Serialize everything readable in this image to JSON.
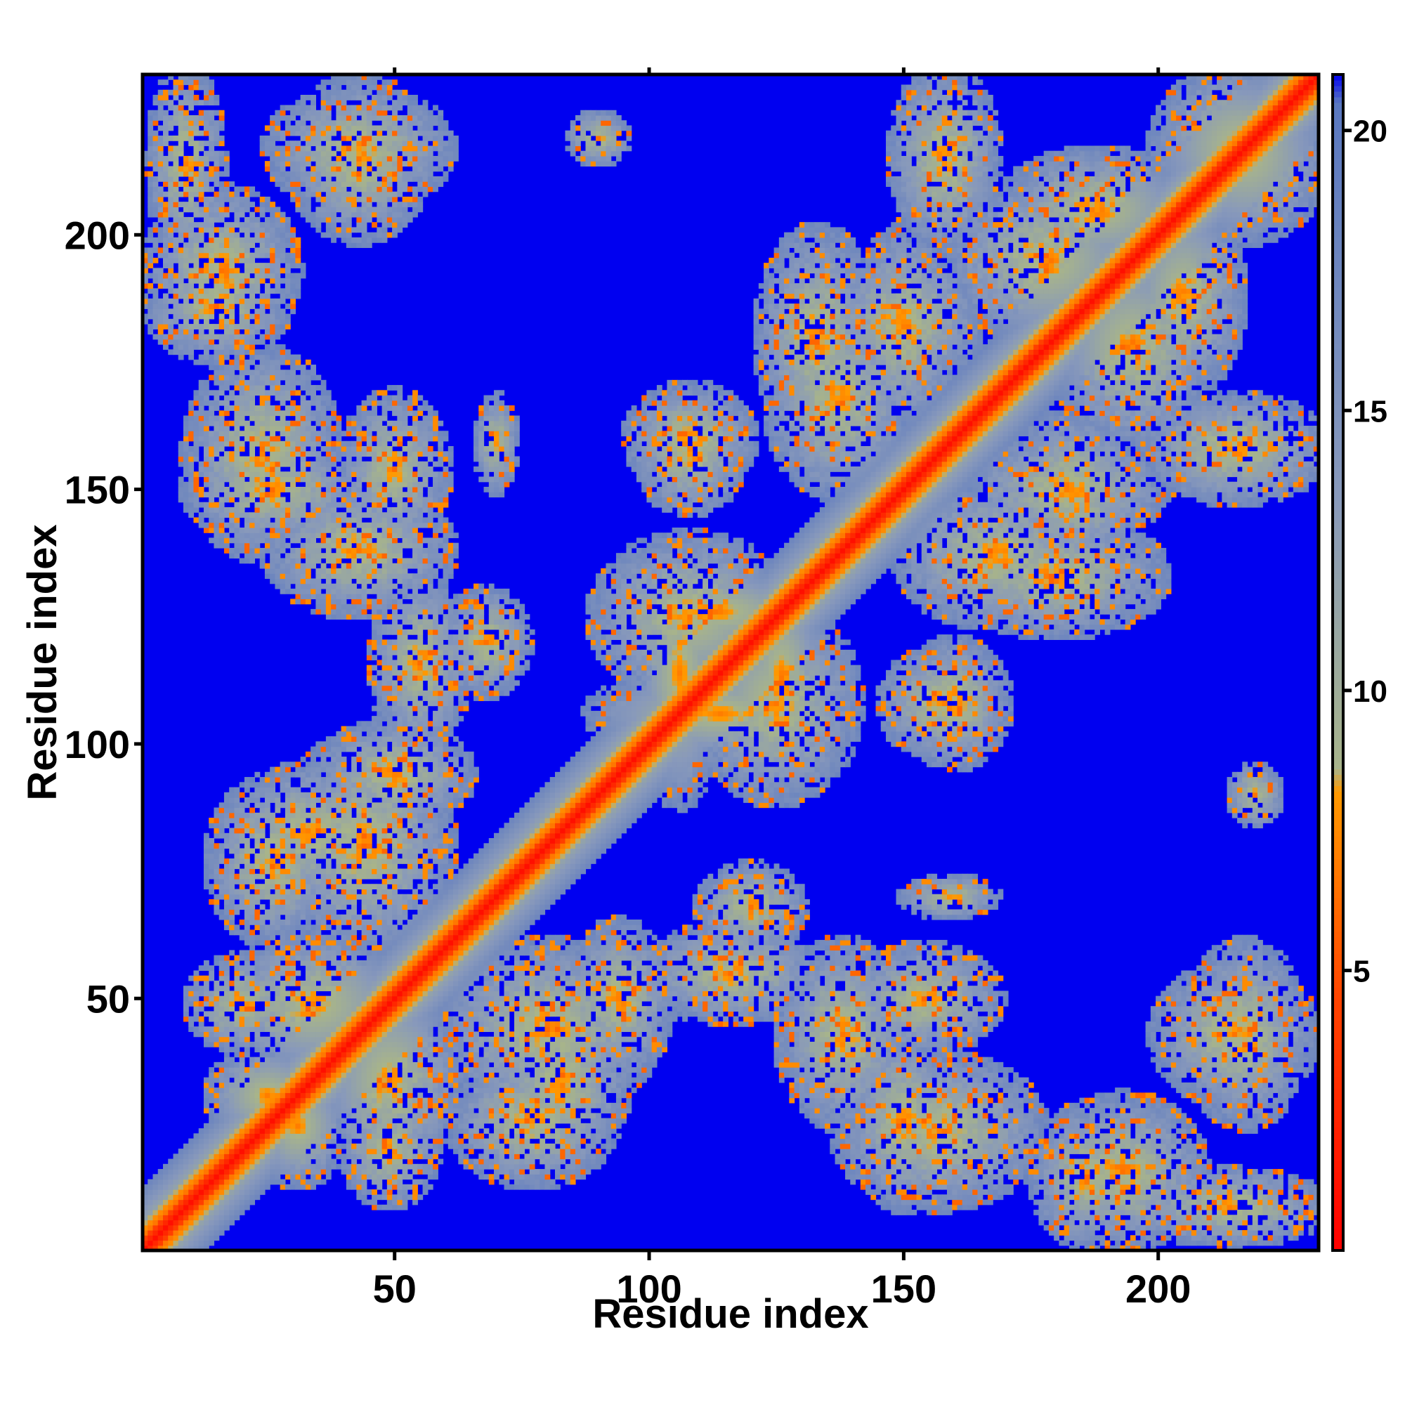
{
  "chart_data": {
    "type": "heatmap",
    "title": "",
    "xlabel": "Residue index",
    "ylabel": "Residue index",
    "n_residues": 231,
    "xlim": [
      0.5,
      231.5
    ],
    "ylim": [
      0.5,
      231.5
    ],
    "x_ticks": [
      50,
      100,
      150,
      200
    ],
    "y_ticks": [
      50,
      100,
      150,
      200
    ],
    "x_tick_labels": [
      "50",
      "100",
      "150",
      "200"
    ],
    "y_tick_labels": [
      "50",
      "100",
      "150",
      "200"
    ],
    "value_label": "",
    "value_range": [
      0,
      21
    ],
    "colorbar_ticks": [
      5,
      10,
      15,
      20
    ],
    "colorbar_tick_labels": [
      "5",
      "10",
      "15",
      "20"
    ],
    "legend_position": "right",
    "grid": false,
    "colors": {
      "near": "#ff0000",
      "mid": "#ff9900",
      "contact": "#a8b48a",
      "far_low": "#8899bb",
      "far_high": "#5a78c0",
      "background": "#0000f0"
    },
    "color_stops": [
      {
        "value": 0,
        "color": "#ff0000"
      },
      {
        "value": 4.5,
        "color": "#ff4400"
      },
      {
        "value": 8.2,
        "color": "#ff9900"
      },
      {
        "value": 8.6,
        "color": "#a8b48a"
      },
      {
        "value": 13.5,
        "color": "#8899bb"
      },
      {
        "value": 20.5,
        "color": "#5a78c0"
      },
      {
        "value": 21,
        "color": "#0000f0"
      }
    ],
    "contact_blocks": [
      {
        "x": [
          22,
          40
        ],
        "y": [
          14,
          36
        ]
      },
      {
        "x": [
          40,
          58
        ],
        "y": [
          10,
          30
        ]
      },
      {
        "x": [
          70,
          95
        ],
        "y": [
          18,
          50
        ]
      },
      {
        "x": [
          60,
          100
        ],
        "y": [
          28,
          60
        ]
      },
      {
        "x": [
          16,
          52
        ],
        "y": [
          36,
          62
        ]
      },
      {
        "x": [
          14,
          38
        ],
        "y": [
          62,
          92
        ]
      },
      {
        "x": [
          36,
          64
        ],
        "y": [
          84,
          104
        ]
      },
      {
        "x": [
          46,
          64
        ],
        "y": [
          100,
          132
        ]
      },
      {
        "x": [
          10,
          42
        ],
        "y": [
          140,
          160
        ]
      },
      {
        "x": [
          40,
          60
        ],
        "y": [
          140,
          168
        ]
      },
      {
        "x": [
          2,
          28
        ],
        "y": [
          176,
          196
        ]
      },
      {
        "x": [
          2,
          16
        ],
        "y": [
          196,
          232
        ]
      },
      {
        "x": [
          30,
          56
        ],
        "y": [
          200,
          230
        ]
      },
      {
        "x": [
          98,
          114
        ],
        "y": [
          90,
          138
        ]
      },
      {
        "x": [
          110,
          140
        ],
        "y": [
          90,
          126
        ]
      },
      {
        "x": [
          96,
          132
        ],
        "y": [
          118,
          134
        ]
      },
      {
        "x": [
          96,
          120
        ],
        "y": [
          150,
          170
        ]
      },
      {
        "x": [
          124,
          150
        ],
        "y": [
          150,
          186
        ]
      },
      {
        "x": [
          136,
          164
        ],
        "y": [
          170,
          196
        ]
      },
      {
        "x": [
          148,
          168
        ],
        "y": [
          198,
          232
        ]
      },
      {
        "x": [
          160,
          200
        ],
        "y": [
          122,
          144
        ]
      },
      {
        "x": [
          164,
          200
        ],
        "y": [
          140,
          160
        ]
      },
      {
        "x": [
          180,
          210
        ],
        "y": [
          160,
          196
        ]
      },
      {
        "x": [
          194,
          216
        ],
        "y": [
          170,
          206
        ]
      },
      {
        "x": [
          202,
          232
        ],
        "y": [
          200,
          232
        ]
      },
      {
        "x": [
          146,
          168
        ],
        "y": [
          98,
          118
        ]
      },
      {
        "x": [
          126,
          150
        ],
        "y": [
          26,
          60
        ]
      },
      {
        "x": [
          138,
          176
        ],
        "y": [
          10,
          38
        ]
      },
      {
        "x": [
          178,
          208
        ],
        "y": [
          2,
          30
        ]
      },
      {
        "x": [
          206,
          228
        ],
        "y": [
          26,
          60
        ]
      },
      {
        "x": [
          110,
          130
        ],
        "y": [
          60,
          76
        ]
      },
      {
        "x": [
          150,
          168
        ],
        "y": [
          66,
          74
        ]
      },
      {
        "x": [
          214,
          224
        ],
        "y": [
          84,
          96
        ]
      }
    ]
  }
}
